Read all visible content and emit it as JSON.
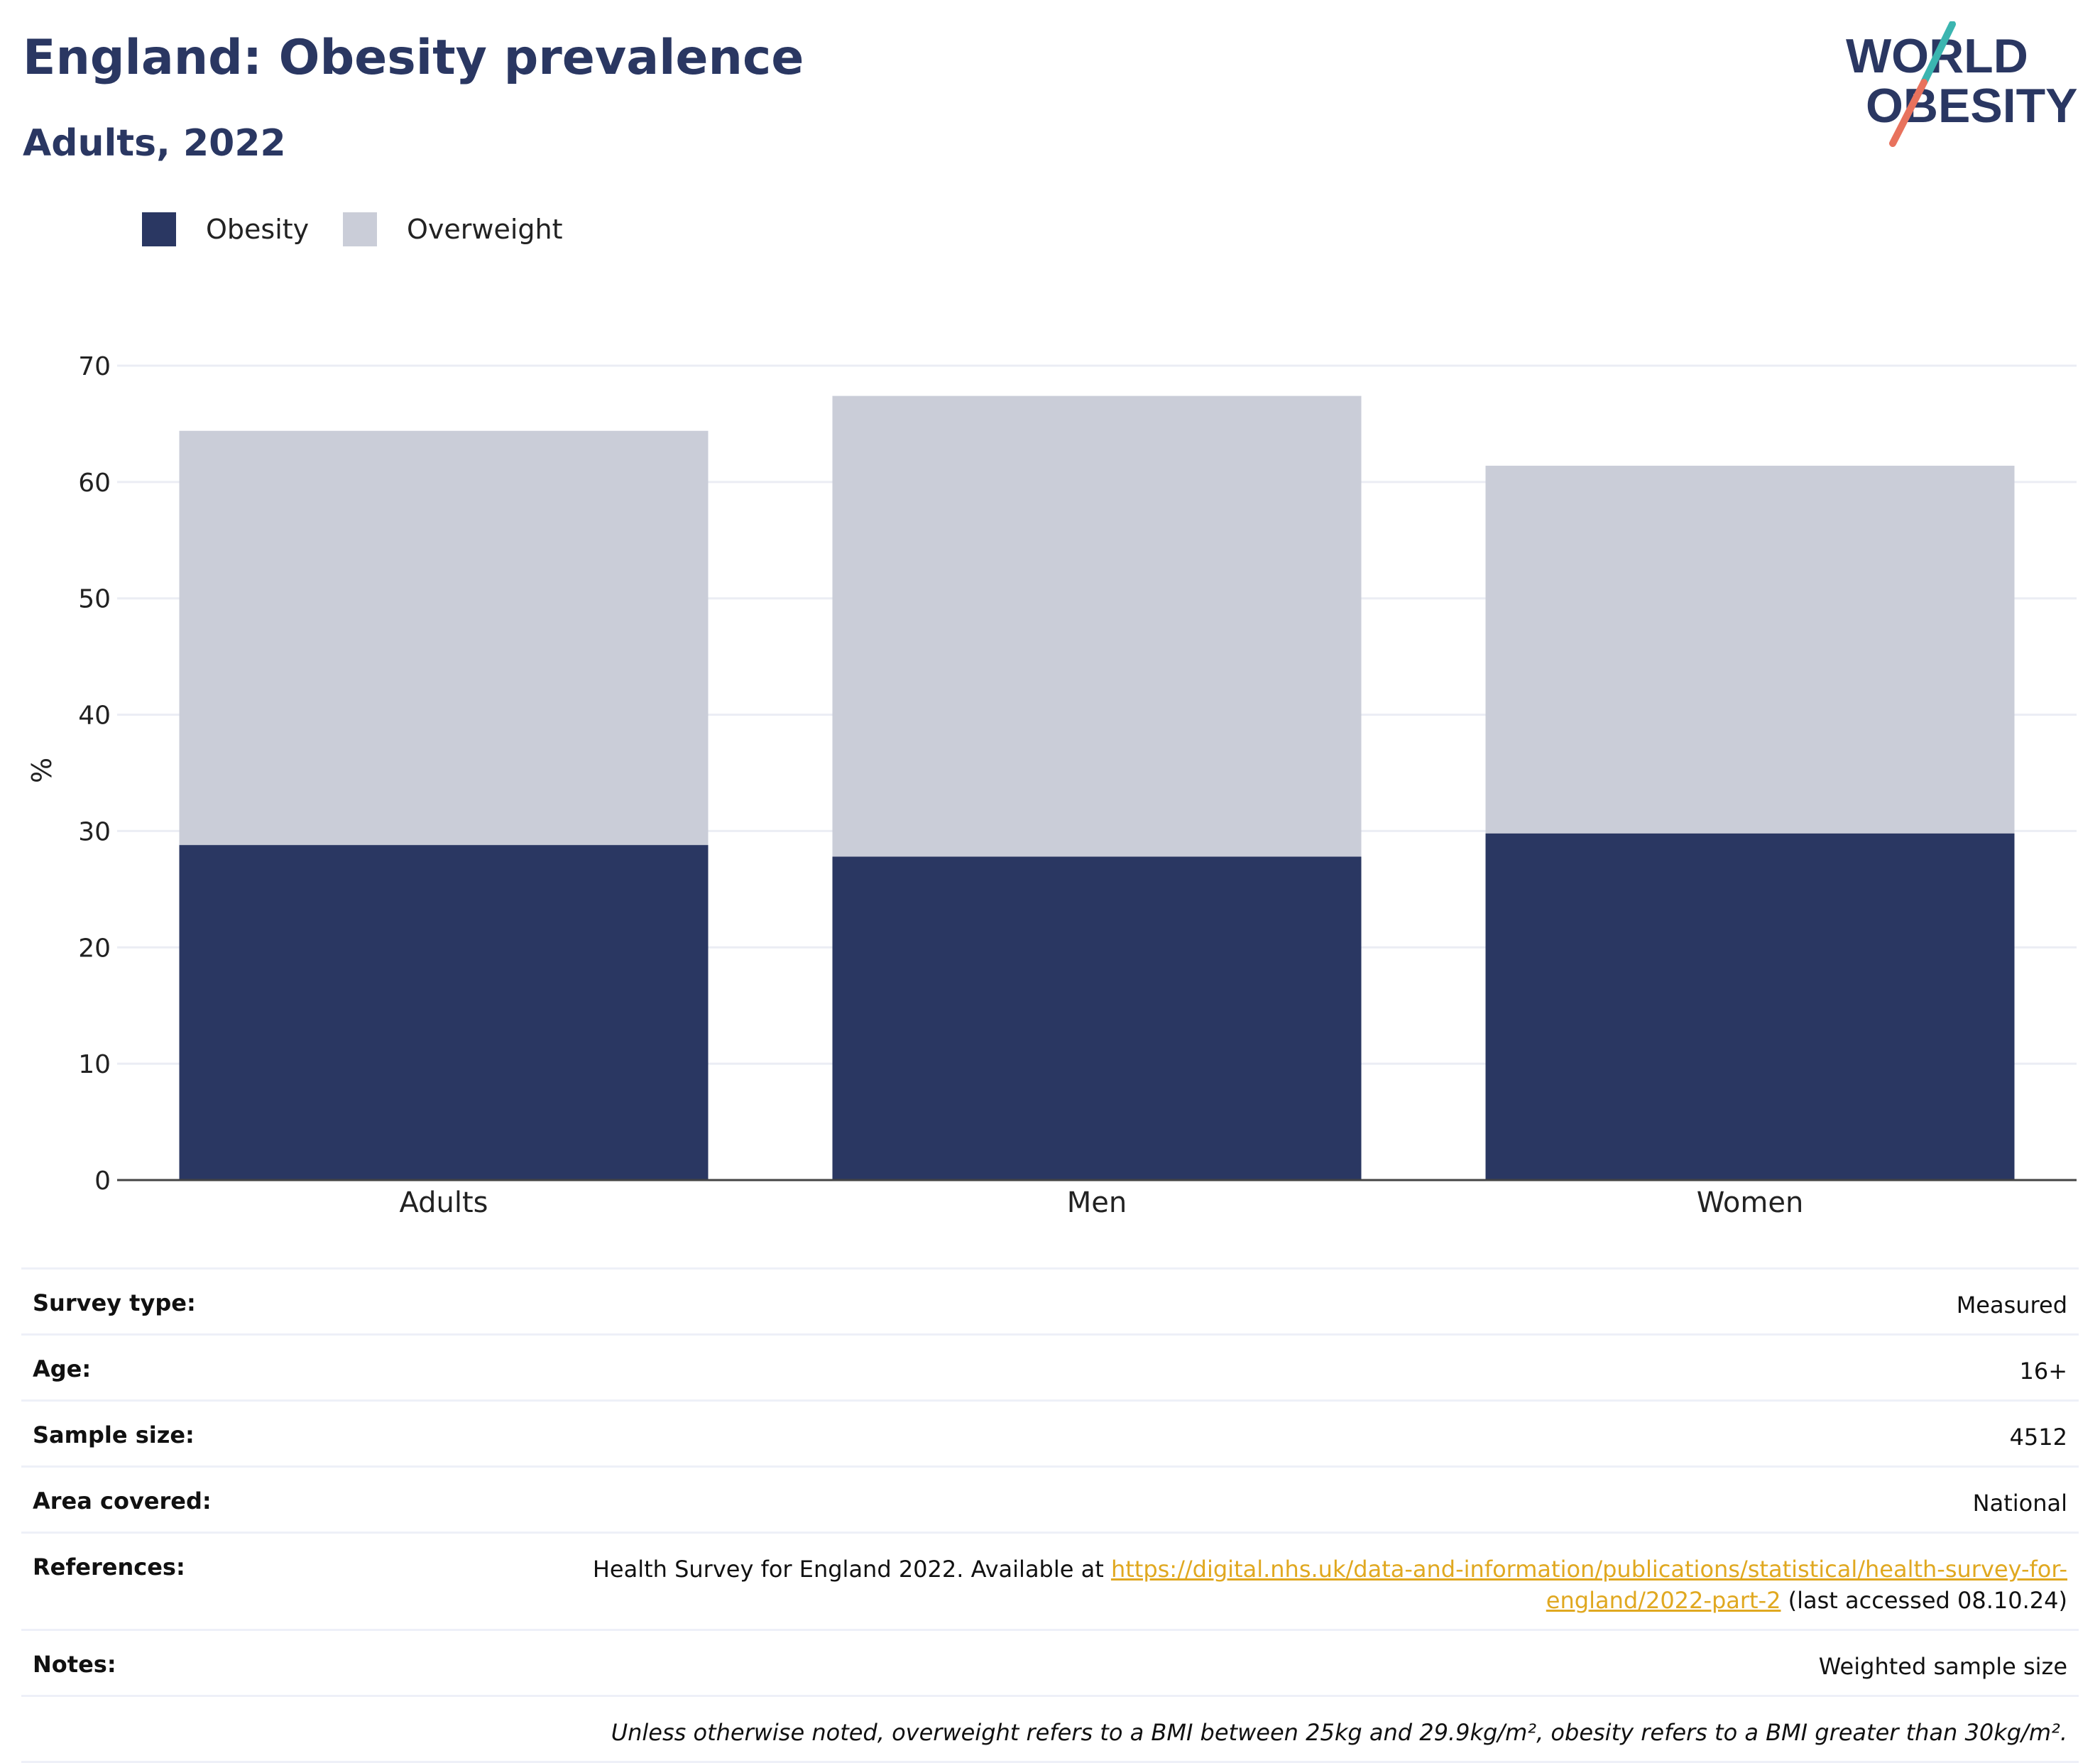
{
  "header": {
    "title": "England: Obesity prevalence",
    "subtitle": "Adults, 2022"
  },
  "logo": {
    "line1": "WORLD",
    "line2": "OBESITY",
    "stroke_colors": [
      "#3bb5b0",
      "#e8725d"
    ]
  },
  "legend": {
    "items": [
      {
        "label": "Obesity",
        "color": "#2a3762"
      },
      {
        "label": "Overweight",
        "color": "#cacdd8"
      }
    ]
  },
  "chart_data": {
    "type": "bar",
    "stacked": true,
    "categories": [
      "Adults",
      "Men",
      "Women"
    ],
    "series": [
      {
        "name": "Obesity",
        "color": "#2a3762",
        "values": [
          28.8,
          27.8,
          29.8
        ]
      },
      {
        "name": "Overweight",
        "color": "#cacdd8",
        "values": [
          35.6,
          39.6,
          31.6
        ]
      }
    ],
    "ylabel": "%",
    "ylim": [
      0,
      70
    ],
    "yticks": [
      0,
      10,
      20,
      30,
      40,
      50,
      60,
      70
    ],
    "grid": true,
    "legend_position": "top-left"
  },
  "info": {
    "survey_type_label": "Survey type:",
    "survey_type_value": "Measured",
    "age_label": "Age:",
    "age_value": "16+",
    "sample_size_label": "Sample size:",
    "sample_size_value": "4512",
    "area_label": "Area covered:",
    "area_value": "National",
    "references_label": "References:",
    "references_prefix": "Health Survey for England 2022. Available at ",
    "references_link": "https://digital.nhs.uk/data-and-information/publications/statistical/health-survey-for-england/2022-part-2",
    "references_suffix": " (last accessed 08.10.24)",
    "notes_label": "Notes:",
    "notes_value": "Weighted sample size",
    "definition_note": "Unless otherwise noted, overweight refers to a BMI between 25kg and 29.9kg/m², obesity refers to a BMI greater than 30kg/m²."
  }
}
